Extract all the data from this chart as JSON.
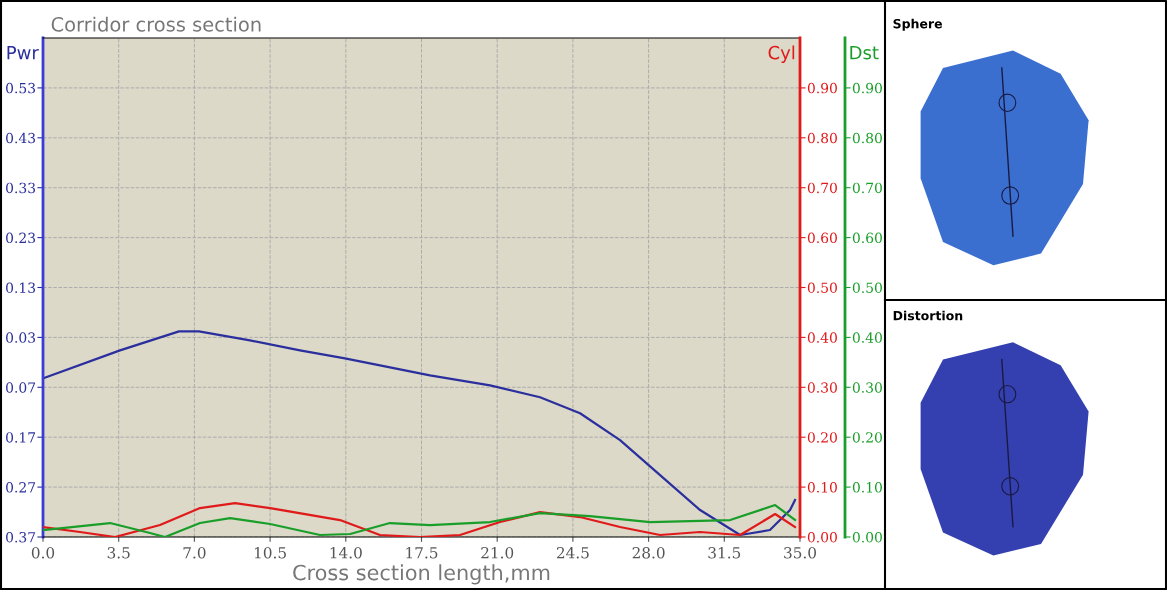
{
  "chart_data": [
    {
      "type": "line",
      "title": "Corridor cross section",
      "xlabel": "Cross section length,mm",
      "ylabel": "Pwr",
      "y2label": "Cyl",
      "y3label": "Dst",
      "xlim": [
        0,
        35
      ],
      "xticks": [
        {
          "value": 0,
          "label": "0.0"
        },
        {
          "value": 3.5,
          "label": "3.5"
        },
        {
          "value": 7,
          "label": "7.0"
        },
        {
          "value": 10.5,
          "label": "10.5"
        },
        {
          "value": 14,
          "label": "14.0"
        },
        {
          "value": 17.5,
          "label": "17.5"
        },
        {
          "value": 21,
          "label": "21.0"
        },
        {
          "value": 24.5,
          "label": "24.5"
        },
        {
          "value": 28,
          "label": "28.0"
        },
        {
          "value": 31.5,
          "label": "31.5"
        },
        {
          "value": 35,
          "label": "35.0"
        }
      ],
      "ylim": [
        -0.37,
        0.63
      ],
      "yticks": [
        {
          "value": -0.37,
          "label": "0.37"
        },
        {
          "value": -0.27,
          "label": "0.27"
        },
        {
          "value": -0.17,
          "label": "0.17"
        },
        {
          "value": -0.07,
          "label": "0.07"
        },
        0.03,
        0.13,
        0.23,
        0.33,
        0.43,
        0.53
      ],
      "y2lim": [
        0,
        1
      ],
      "y2ticks": [
        {
          "value": 0,
          "label": "0.00"
        },
        {
          "value": 0.1,
          "label": "0.10"
        },
        {
          "value": 0.2,
          "label": "0.20"
        },
        {
          "value": 0.3,
          "label": "0.30"
        },
        {
          "value": 0.4,
          "label": "0.40"
        },
        {
          "value": 0.5,
          "label": "0.50"
        },
        {
          "value": 0.6,
          "label": "0.60"
        },
        {
          "value": 0.7,
          "label": "0.70"
        },
        {
          "value": 0.8,
          "label": "0.80"
        },
        {
          "value": 0.9,
          "label": "0.90"
        }
      ],
      "y3lim": [
        0,
        1
      ],
      "y3ticks": [
        {
          "value": 0,
          "label": "0.00"
        },
        {
          "value": 0.1,
          "label": "0.10"
        },
        {
          "value": 0.2,
          "label": "0.20"
        },
        {
          "value": 0.3,
          "label": "0.30"
        },
        {
          "value": 0.4,
          "label": "0.40"
        },
        {
          "value": 0.5,
          "label": "0.50"
        },
        {
          "value": 0.6,
          "label": "0.60"
        },
        {
          "value": 0.7,
          "label": "0.70"
        },
        {
          "value": 0.8,
          "label": "0.80"
        },
        {
          "value": 0.9,
          "label": "0.90"
        }
      ],
      "grid": true,
      "series": [
        {
          "color": "#2b2f9e",
          "axis": "y",
          "x": [
            0,
            3.56,
            6.29,
            7.21,
            9.57,
            11.88,
            13.96,
            15.58,
            17.89,
            20.67,
            22.98,
            24.83,
            26.68,
            28.53,
            30.38,
            32.23,
            33.61,
            34.54,
            34.77
          ],
          "values": [
            -0.052,
            0.004,
            0.042,
            0.042,
            0.024,
            0.004,
            -0.012,
            -0.026,
            -0.046,
            -0.066,
            -0.09,
            -0.122,
            -0.176,
            -0.246,
            -0.316,
            -0.366,
            -0.356,
            -0.316,
            -0.296
          ]
        },
        {
          "color": "#e01a1a",
          "axis": "y2",
          "x": [
            0,
            1.71,
            3.33,
            5.41,
            7.26,
            8.88,
            10.5,
            13.73,
            15.58,
            17.43,
            19.28,
            21.13,
            22.98,
            24.83,
            26.68,
            28.53,
            30.38,
            32.23,
            33.85,
            34.77
          ],
          "values": [
            0.02,
            0.01,
            0,
            0.024,
            0.058,
            0.068,
            0.058,
            0.034,
            0.004,
            0,
            0.004,
            0.03,
            0.05,
            0.04,
            0.02,
            0.004,
            0.01,
            0.004,
            0.046,
            0.02
          ]
        },
        {
          "color": "#1a9e2a",
          "axis": "y3",
          "x": [
            0,
            3.1,
            4.95,
            5.64,
            7.26,
            8.65,
            10.5,
            12.81,
            14.2,
            16.04,
            17.89,
            20.67,
            22.98,
            25.29,
            28.07,
            31.77,
            33.85,
            34.77
          ],
          "values": [
            0.014,
            0.028,
            0.008,
            0,
            0.028,
            0.038,
            0.026,
            0.004,
            0.006,
            0.028,
            0.024,
            0.03,
            0.048,
            0.042,
            0.03,
            0.034,
            0.064,
            0.034
          ]
        }
      ]
    },
    {
      "type": "other",
      "title": "Sphere"
    },
    {
      "type": "other",
      "title": "Distortion"
    }
  ]
}
